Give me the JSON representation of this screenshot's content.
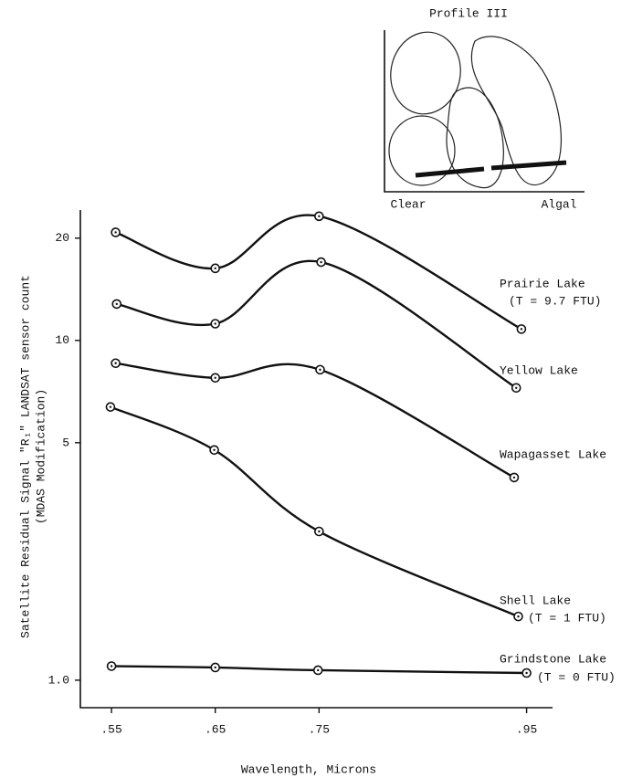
{
  "chart_data": {
    "type": "line",
    "inset": {
      "title": "Profile III",
      "left_label": "Clear",
      "right_label": "Algal"
    },
    "x_label": "Wavelength, Microns",
    "y_label": "Satellite Residual Signal \"R₁\" LANDSAT sensor count",
    "y_label_sub": "(MDAS Modification)",
    "log_y": true,
    "xlim": [
      0.52,
      0.975
    ],
    "ylim": [
      0.83,
      24.2
    ],
    "xticks": [
      {
        "value": 0.55,
        "label": ".55"
      },
      {
        "value": 0.65,
        "label": ".65"
      },
      {
        "value": 0.75,
        "label": ".75"
      },
      {
        "value": 0.95,
        "label": ".95"
      }
    ],
    "yticks": [
      {
        "value": 1,
        "label": "1.0"
      },
      5,
      10,
      20
    ],
    "series": [
      {
        "name": "Prairie Lake",
        "note": "(T = 9.7 FTU)",
        "color": "#111111",
        "x": [
          0.554,
          0.65,
          0.75,
          0.945
        ],
        "values": [
          20.8,
          16.3,
          23.2,
          10.8
        ]
      },
      {
        "name": "Yellow Lake",
        "color": "#111111",
        "x": [
          0.555,
          0.65,
          0.752,
          0.94
        ],
        "values": [
          12.8,
          11.2,
          17.0,
          7.25
        ]
      },
      {
        "name": "Wapagasset Lake",
        "color": "#111111",
        "x": [
          0.554,
          0.65,
          0.751,
          0.938
        ],
        "values": [
          8.57,
          7.76,
          8.2,
          3.95
        ]
      },
      {
        "name": "Shell Lake",
        "note": "(T = 1 FTU)",
        "color": "#111111",
        "x": [
          0.549,
          0.649,
          0.75,
          0.942
        ],
        "values": [
          6.37,
          4.76,
          2.74,
          1.54
        ]
      },
      {
        "name": "Grindstone Lake",
        "note": "(T = 0 FTU)",
        "color": "#111111",
        "x": [
          0.55,
          0.65,
          0.749,
          0.95
        ],
        "values": [
          1.1,
          1.09,
          1.07,
          1.05
        ]
      }
    ]
  }
}
